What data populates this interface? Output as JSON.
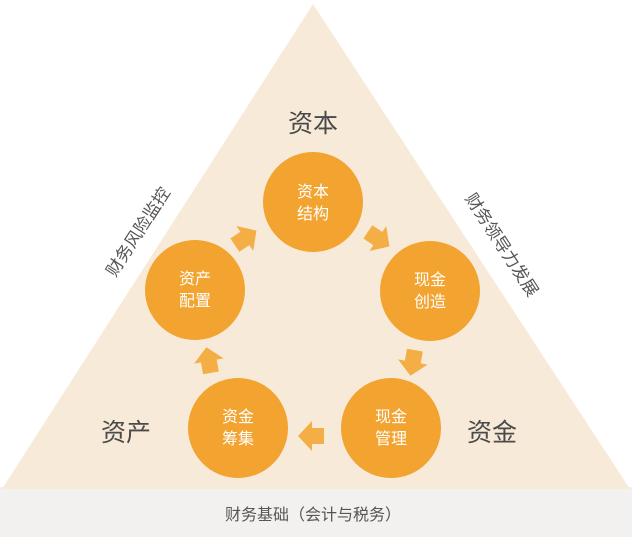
{
  "corners": {
    "top": "资本",
    "left": "资产",
    "right": "资金"
  },
  "sides": {
    "left": "财务风险监控",
    "right": "财务领导力发展",
    "bottom": "财务基础（会计与税务）"
  },
  "nodes": [
    {
      "id": "capital-structure",
      "line1": "资本",
      "line2": "结构"
    },
    {
      "id": "cash-creation",
      "line1": "现金",
      "line2": "创造"
    },
    {
      "id": "cash-management",
      "line1": "现金",
      "line2": "管理"
    },
    {
      "id": "fund-raising",
      "line1": "资金",
      "line2": "筹集"
    },
    {
      "id": "asset-allocation",
      "line1": "资产",
      "line2": "配置"
    }
  ],
  "colors": {
    "triangle": "#f8ead8",
    "base_band": "#f3f1ef",
    "circle": "#f2a330",
    "arrow": "#f3ae45",
    "corner_text": "#4a4a4a",
    "side_text": "#555555",
    "node_text": "#ffffff"
  }
}
